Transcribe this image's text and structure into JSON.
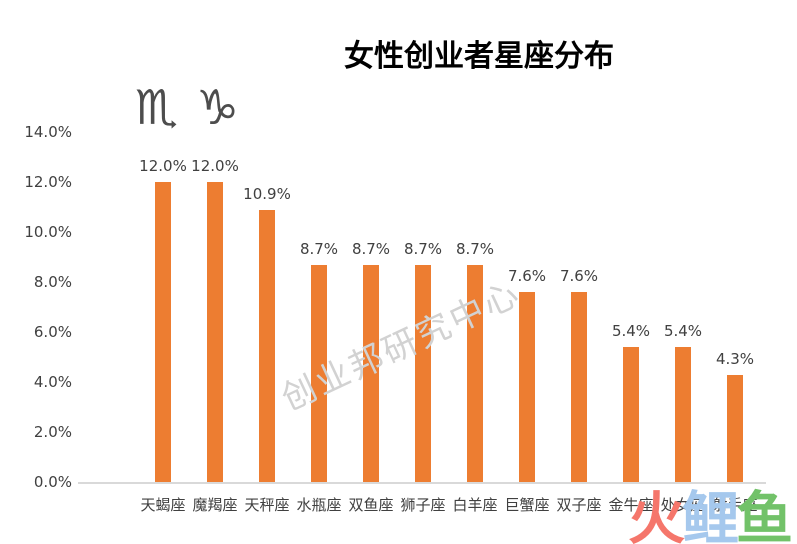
{
  "page": {
    "title": "女性创业者星座分布"
  },
  "chart_data": {
    "type": "bar",
    "title": "女性创业者星座分布",
    "categories": [
      "天蝎座",
      "魔羯座",
      "天秤座",
      "水瓶座",
      "双鱼座",
      "狮子座",
      "白羊座",
      "巨蟹座",
      "双子座",
      "金牛座",
      "处女座",
      "射手座"
    ],
    "values": [
      12.0,
      12.0,
      10.9,
      8.7,
      8.7,
      8.7,
      8.7,
      7.6,
      7.6,
      5.4,
      5.4,
      4.3
    ],
    "value_labels": [
      "12.0%",
      "12.0%",
      "10.9%",
      "8.7%",
      "8.7%",
      "8.7%",
      "8.7%",
      "7.6%",
      "7.6%",
      "5.4%",
      "5.4%",
      "4.3%"
    ],
    "xlabel": "",
    "ylabel": "",
    "ylim": [
      0,
      14
    ],
    "yticks": [
      {
        "value": 14,
        "label": "14.0%"
      },
      {
        "value": 12,
        "label": "12.0%"
      },
      {
        "value": 10,
        "label": "10.0%"
      },
      {
        "value": 8,
        "label": "8.0%"
      },
      {
        "value": 6,
        "label": "6.0%"
      },
      {
        "value": 4,
        "label": "4.0%"
      },
      {
        "value": 2,
        "label": "2.0%"
      },
      {
        "value": 0,
        "label": "0.0%"
      }
    ],
    "grid": false,
    "legend": "none",
    "bar_color": "#ED7D31"
  },
  "icons": [
    {
      "name": "scorpio-icon",
      "glyph": "♏"
    },
    {
      "name": "capricorn-icon",
      "glyph": "♑"
    }
  ],
  "watermark": {
    "text": "创业邦研究中心",
    "color": "#D2D2D2"
  },
  "logo": {
    "text": "火鲤鱼",
    "chars": [
      {
        "text": "火",
        "color": "#F5766B"
      },
      {
        "text": "鲤",
        "color": "#A5C8ED"
      },
      {
        "text": "鱼",
        "color": "#72C269"
      }
    ]
  },
  "colors": {
    "bar": "#ED7D31",
    "axis_line": "#D9D9D9",
    "tick_text": "#404040",
    "title_text": "#000000",
    "zodiac_icon": "#4D4D4D"
  }
}
